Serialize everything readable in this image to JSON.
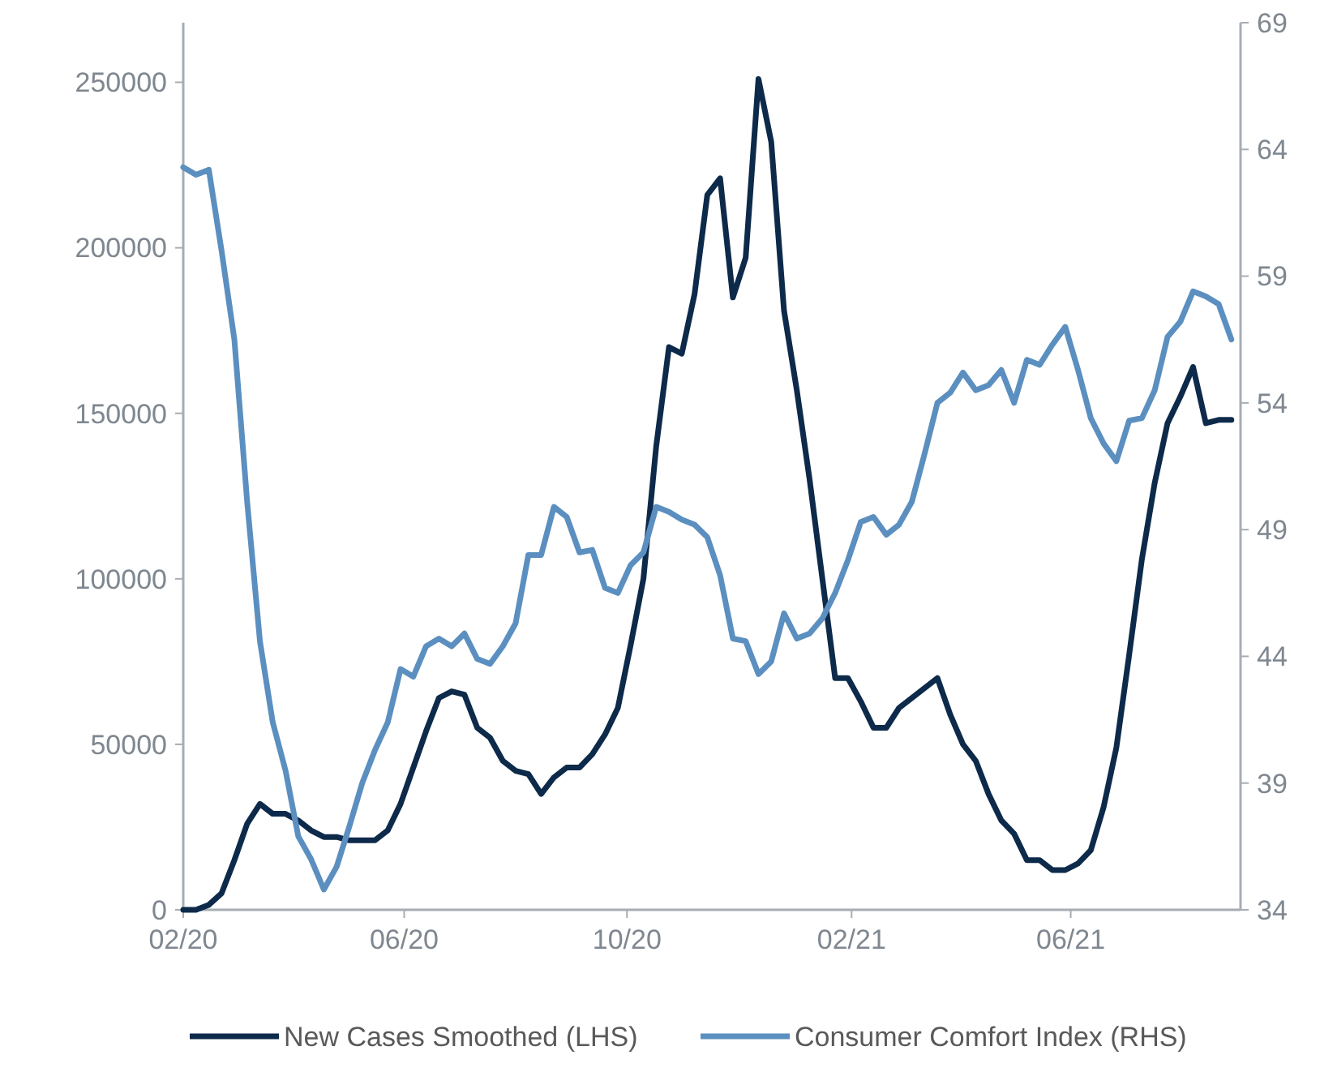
{
  "chart_data": {
    "type": "line",
    "x": [
      "2020-02-01",
      "2020-02-08",
      "2020-02-15",
      "2020-02-22",
      "2020-02-29",
      "2020-03-07",
      "2020-03-14",
      "2020-03-21",
      "2020-03-28",
      "2020-04-04",
      "2020-04-11",
      "2020-04-18",
      "2020-04-25",
      "2020-05-02",
      "2020-05-09",
      "2020-05-16",
      "2020-05-23",
      "2020-05-30",
      "2020-06-06",
      "2020-06-13",
      "2020-06-20",
      "2020-06-27",
      "2020-07-04",
      "2020-07-11",
      "2020-07-18",
      "2020-07-25",
      "2020-08-01",
      "2020-08-08",
      "2020-08-15",
      "2020-08-22",
      "2020-08-29",
      "2020-09-05",
      "2020-09-12",
      "2020-09-19",
      "2020-09-26",
      "2020-10-03",
      "2020-10-10",
      "2020-10-17",
      "2020-10-24",
      "2020-10-31",
      "2020-11-07",
      "2020-11-14",
      "2020-11-21",
      "2020-11-28",
      "2020-12-05",
      "2020-12-12",
      "2020-12-19",
      "2020-12-26",
      "2021-01-02",
      "2021-01-09",
      "2021-01-16",
      "2021-01-23",
      "2021-01-30",
      "2021-02-06",
      "2021-02-13",
      "2021-02-20",
      "2021-02-27",
      "2021-03-06",
      "2021-03-13",
      "2021-03-20",
      "2021-03-27",
      "2021-04-03",
      "2021-04-10",
      "2021-04-17",
      "2021-04-24",
      "2021-05-01",
      "2021-05-08",
      "2021-05-15",
      "2021-05-22",
      "2021-05-29",
      "2021-06-05",
      "2021-06-12",
      "2021-06-19",
      "2021-06-26",
      "2021-07-03",
      "2021-07-10",
      "2021-07-17",
      "2021-07-24",
      "2021-07-31",
      "2021-08-07",
      "2021-08-14",
      "2021-08-21",
      "2021-08-28"
    ],
    "series": [
      {
        "name": "New Cases Smoothed (LHS)",
        "color": "#0d2a4a",
        "values": [
          0,
          0,
          1500,
          5000,
          15000,
          26000,
          32000,
          29000,
          29000,
          27000,
          24000,
          22000,
          22000,
          21000,
          21000,
          21000,
          24000,
          32000,
          43000,
          54000,
          64000,
          66000,
          65000,
          55000,
          52000,
          45000,
          42000,
          41000,
          35000,
          40000,
          43000,
          43000,
          47000,
          53000,
          61000,
          80000,
          100000,
          140000,
          170000,
          168000,
          186000,
          216000,
          221000,
          185000,
          197000,
          251000,
          232000,
          181000,
          157000,
          130000,
          100000,
          70000,
          70000,
          63000,
          55000,
          55000,
          61000,
          64000,
          67000,
          70000,
          59000,
          50000,
          45000,
          35000,
          27000,
          23000,
          15000,
          15000,
          12000,
          12000,
          14000,
          18000,
          31000,
          49000,
          77000,
          106000,
          129000,
          147000,
          155000,
          164000,
          147000,
          148000,
          148000
        ]
      },
      {
        "name": "Consumer Comfort Index (RHS)",
        "color": "#5b8fc0",
        "axis": "y2",
        "values": [
          63.3,
          63.0,
          63.2,
          60.0,
          56.5,
          50.1,
          44.6,
          41.4,
          39.5,
          36.9,
          36.0,
          34.8,
          35.7,
          37.3,
          39.0,
          40.3,
          41.4,
          43.5,
          43.2,
          44.4,
          44.7,
          44.4,
          44.9,
          43.9,
          43.7,
          44.4,
          45.3,
          48.0,
          48.0,
          49.9,
          49.5,
          48.1,
          48.2,
          46.7,
          46.5,
          47.6,
          48.1,
          49.9,
          49.7,
          49.4,
          49.2,
          48.7,
          47.2,
          44.7,
          44.6,
          43.3,
          43.8,
          45.7,
          44.7,
          44.9,
          45.5,
          46.5,
          47.8,
          49.3,
          49.5,
          48.8,
          49.2,
          50.1,
          52.0,
          54.0,
          54.4,
          55.2,
          54.5,
          54.7,
          55.3,
          54.0,
          55.7,
          55.5,
          56.3,
          57.0,
          55.3,
          53.4,
          52.4,
          51.7,
          53.3,
          53.4,
          54.5,
          56.6,
          57.2,
          58.4,
          58.2,
          57.9,
          56.5
        ]
      }
    ],
    "xlim": [
      "2020-02-01",
      "2021-09-02"
    ],
    "xticks": [
      {
        "value": "2020-02-01",
        "label": "02/20"
      },
      {
        "value": "2020-06-01",
        "label": "06/20"
      },
      {
        "value": "2020-10-01",
        "label": "10/20"
      },
      {
        "value": "2021-02-01",
        "label": "02/21"
      },
      {
        "value": "2021-06-01",
        "label": "06/21"
      }
    ],
    "ylim": [
      0,
      268000
    ],
    "yticks": [
      0,
      50000,
      100000,
      150000,
      200000,
      250000
    ],
    "y2lim": [
      34,
      69
    ],
    "y2ticks": [
      34,
      39,
      44,
      49,
      54,
      59,
      64,
      69
    ],
    "legend": "bottom",
    "grid": false
  }
}
